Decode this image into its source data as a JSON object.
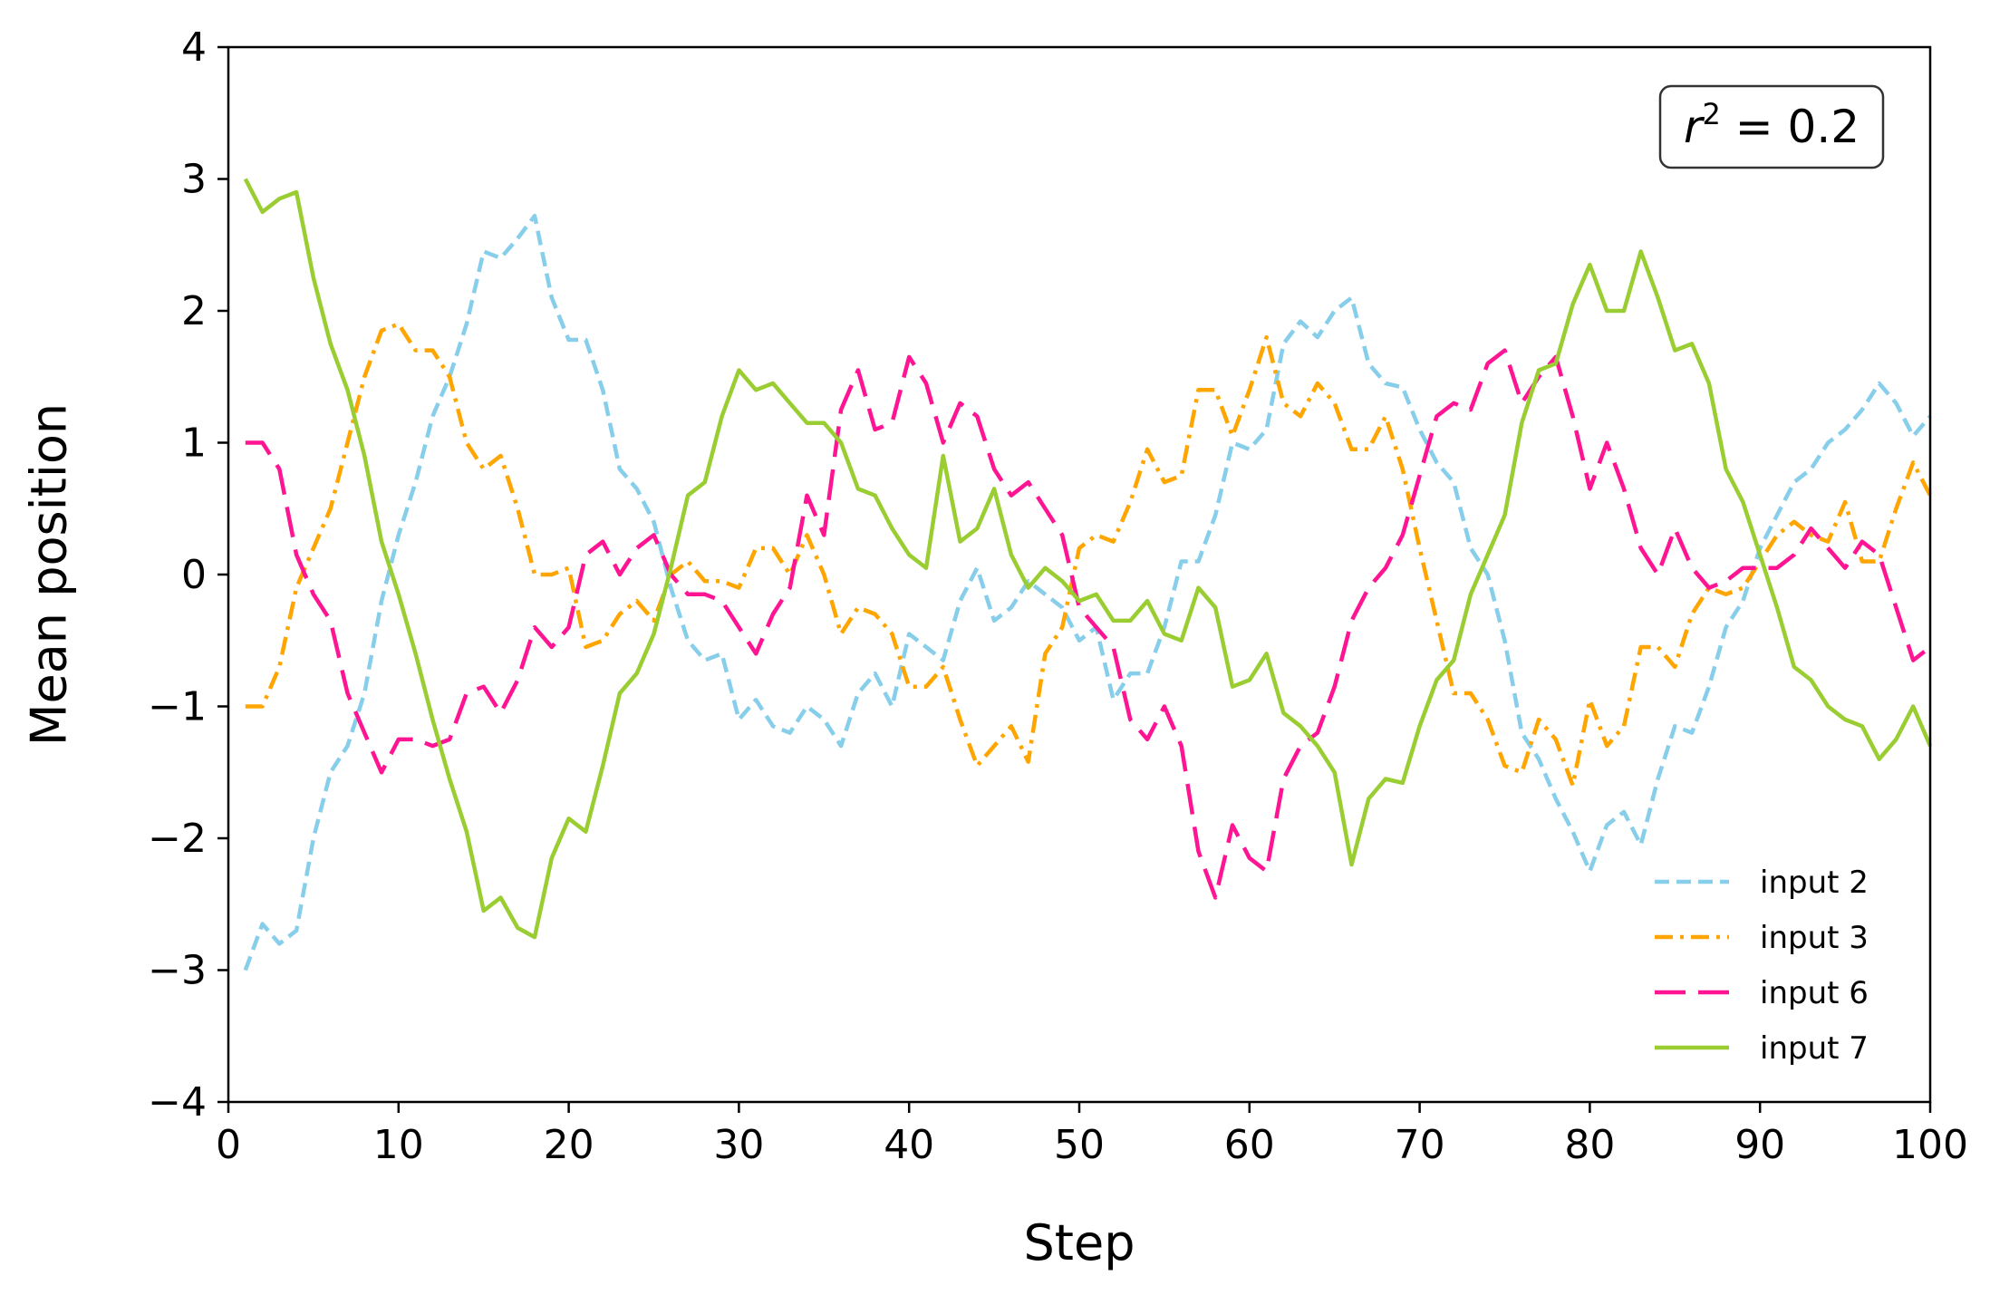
{
  "chart_data": {
    "type": "line",
    "xlabel": "Step",
    "ylabel": "Mean position",
    "xlim": [
      0,
      100
    ],
    "ylim": [
      -4,
      4
    ],
    "xticks": [
      0,
      10,
      20,
      30,
      40,
      50,
      60,
      70,
      80,
      90,
      100
    ],
    "xtick_labels": [
      "0",
      "10",
      "20",
      "30",
      "40",
      "50",
      "60",
      "70",
      "80",
      "90",
      "100"
    ],
    "yticks": [
      4,
      3,
      2,
      1,
      0,
      -1,
      -2,
      -3,
      -4
    ],
    "ytick_labels": [
      "4",
      "3",
      "2",
      "1",
      "0",
      "−1",
      "−2",
      "−3",
      "−4"
    ],
    "grid": false,
    "legend_position": "bottom-right",
    "annotation": {
      "symbol": "r",
      "superscript": "2",
      "rest": " = 0.2"
    },
    "x": [
      1,
      2,
      3,
      4,
      5,
      6,
      7,
      8,
      9,
      10,
      11,
      12,
      13,
      14,
      15,
      16,
      17,
      18,
      19,
      20,
      21,
      22,
      23,
      24,
      25,
      26,
      27,
      28,
      29,
      30,
      31,
      32,
      33,
      34,
      35,
      36,
      37,
      38,
      39,
      40,
      41,
      42,
      43,
      44,
      45,
      46,
      47,
      48,
      49,
      50,
      51,
      52,
      53,
      54,
      55,
      56,
      57,
      58,
      59,
      60,
      61,
      62,
      63,
      64,
      65,
      66,
      67,
      68,
      69,
      70,
      71,
      72,
      73,
      74,
      75,
      76,
      77,
      78,
      79,
      80,
      81,
      82,
      83,
      84,
      85,
      86,
      87,
      88,
      89,
      90,
      91,
      92,
      93,
      94,
      95,
      96,
      97,
      98,
      99,
      100
    ],
    "series": [
      {
        "name": "input 2",
        "color": "#87CEEB",
        "dash": "dashed",
        "values": [
          -3.0,
          -2.65,
          -2.8,
          -2.7,
          -2.0,
          -1.5,
          -1.3,
          -0.9,
          -0.2,
          0.3,
          0.7,
          1.2,
          1.5,
          1.9,
          2.45,
          2.4,
          2.55,
          2.72,
          2.1,
          1.78,
          1.78,
          1.4,
          0.8,
          0.65,
          0.4,
          -0.1,
          -0.5,
          -0.65,
          -0.6,
          -1.1,
          -0.95,
          -1.15,
          -1.2,
          -1.0,
          -1.1,
          -1.3,
          -0.9,
          -0.75,
          -1.0,
          -0.45,
          -0.55,
          -0.65,
          -0.2,
          0.05,
          -0.35,
          -0.25,
          -0.05,
          -0.15,
          -0.25,
          -0.5,
          -0.4,
          -0.95,
          -0.75,
          -0.75,
          -0.4,
          0.1,
          0.1,
          0.45,
          1.0,
          0.95,
          1.1,
          1.75,
          1.92,
          1.8,
          2.0,
          2.1,
          1.6,
          1.45,
          1.42,
          1.1,
          0.85,
          0.7,
          0.2,
          0.0,
          -0.5,
          -1.2,
          -1.4,
          -1.7,
          -1.95,
          -2.25,
          -1.9,
          -1.8,
          -2.05,
          -1.55,
          -1.15,
          -1.2,
          -0.85,
          -0.4,
          -0.2,
          0.2,
          0.45,
          0.7,
          0.8,
          1.0,
          1.1,
          1.25,
          1.45,
          1.3,
          1.05,
          1.2
        ]
      },
      {
        "name": "input 3",
        "color": "#FFA500",
        "dash": "dashdot",
        "values": [
          -1.0,
          -1.0,
          -0.7,
          -0.1,
          0.2,
          0.5,
          1.0,
          1.5,
          1.85,
          1.9,
          1.7,
          1.7,
          1.5,
          1.0,
          0.8,
          0.9,
          0.5,
          0.0,
          0.0,
          0.05,
          -0.55,
          -0.5,
          -0.3,
          -0.2,
          -0.35,
          0.0,
          0.1,
          -0.05,
          -0.05,
          -0.1,
          0.2,
          0.2,
          0.0,
          0.3,
          0.0,
          -0.45,
          -0.25,
          -0.3,
          -0.45,
          -0.85,
          -0.85,
          -0.7,
          -1.1,
          -1.45,
          -1.3,
          -1.15,
          -1.42,
          -0.6,
          -0.4,
          0.2,
          0.3,
          0.25,
          0.55,
          0.95,
          0.7,
          0.75,
          1.4,
          1.4,
          1.05,
          1.4,
          1.8,
          1.3,
          1.2,
          1.45,
          1.3,
          0.95,
          0.95,
          1.2,
          0.8,
          0.2,
          -0.35,
          -0.9,
          -0.9,
          -1.1,
          -1.45,
          -1.5,
          -1.1,
          -1.25,
          -1.6,
          -0.95,
          -1.3,
          -1.15,
          -0.55,
          -0.55,
          -0.7,
          -0.3,
          -0.1,
          -0.15,
          -0.1,
          0.1,
          0.3,
          0.4,
          0.3,
          0.25,
          0.55,
          0.1,
          0.1,
          0.5,
          0.85,
          0.6
        ]
      },
      {
        "name": "input 6",
        "color": "#FF1493",
        "dash": "longdash",
        "values": [
          1.0,
          1.0,
          0.8,
          0.15,
          -0.15,
          -0.35,
          -0.9,
          -1.2,
          -1.5,
          -1.25,
          -1.25,
          -1.3,
          -1.25,
          -0.9,
          -0.85,
          -1.05,
          -0.8,
          -0.4,
          -0.55,
          -0.4,
          0.15,
          0.25,
          0.0,
          0.2,
          0.3,
          0.0,
          -0.15,
          -0.15,
          -0.2,
          -0.4,
          -0.6,
          -0.3,
          -0.1,
          0.6,
          0.3,
          1.25,
          1.55,
          1.1,
          1.15,
          1.65,
          1.45,
          1.0,
          1.3,
          1.2,
          0.8,
          0.6,
          0.7,
          0.5,
          0.3,
          -0.25,
          -0.4,
          -0.55,
          -1.1,
          -1.25,
          -1.0,
          -1.3,
          -2.1,
          -2.45,
          -1.9,
          -2.15,
          -2.25,
          -1.55,
          -1.3,
          -1.2,
          -0.85,
          -0.35,
          -0.1,
          0.05,
          0.3,
          0.75,
          1.2,
          1.3,
          1.25,
          1.6,
          1.7,
          1.3,
          1.5,
          1.65,
          1.2,
          0.65,
          1.0,
          0.65,
          0.2,
          0.0,
          0.35,
          0.05,
          -0.1,
          -0.05,
          0.05,
          0.05,
          0.05,
          0.15,
          0.35,
          0.2,
          0.05,
          0.25,
          0.15,
          -0.25,
          -0.65,
          -0.55
        ]
      },
      {
        "name": "input 7",
        "color": "#9ACD32",
        "dash": "solid",
        "values": [
          3.0,
          2.75,
          2.85,
          2.9,
          2.25,
          1.75,
          1.4,
          0.9,
          0.25,
          -0.15,
          -0.6,
          -1.1,
          -1.55,
          -1.95,
          -2.55,
          -2.45,
          -2.68,
          -2.75,
          -2.15,
          -1.85,
          -1.95,
          -1.45,
          -0.9,
          -0.75,
          -0.45,
          0.05,
          0.6,
          0.7,
          1.2,
          1.55,
          1.4,
          1.45,
          1.3,
          1.15,
          1.15,
          1.0,
          0.65,
          0.6,
          0.35,
          0.15,
          0.05,
          0.9,
          0.25,
          0.35,
          0.65,
          0.15,
          -0.1,
          0.05,
          -0.05,
          -0.2,
          -0.15,
          -0.35,
          -0.35,
          -0.2,
          -0.45,
          -0.5,
          -0.1,
          -0.25,
          -0.85,
          -0.8,
          -0.6,
          -1.05,
          -1.15,
          -1.3,
          -1.5,
          -2.2,
          -1.7,
          -1.55,
          -1.58,
          -1.15,
          -0.8,
          -0.65,
          -0.15,
          0.15,
          0.45,
          1.15,
          1.55,
          1.6,
          2.05,
          2.35,
          2.0,
          2.0,
          2.45,
          2.1,
          1.7,
          1.75,
          1.45,
          0.8,
          0.55,
          0.15,
          -0.25,
          -0.7,
          -0.8,
          -1.0,
          -1.1,
          -1.15,
          -1.4,
          -1.25,
          -1.0,
          -1.3
        ]
      }
    ]
  }
}
